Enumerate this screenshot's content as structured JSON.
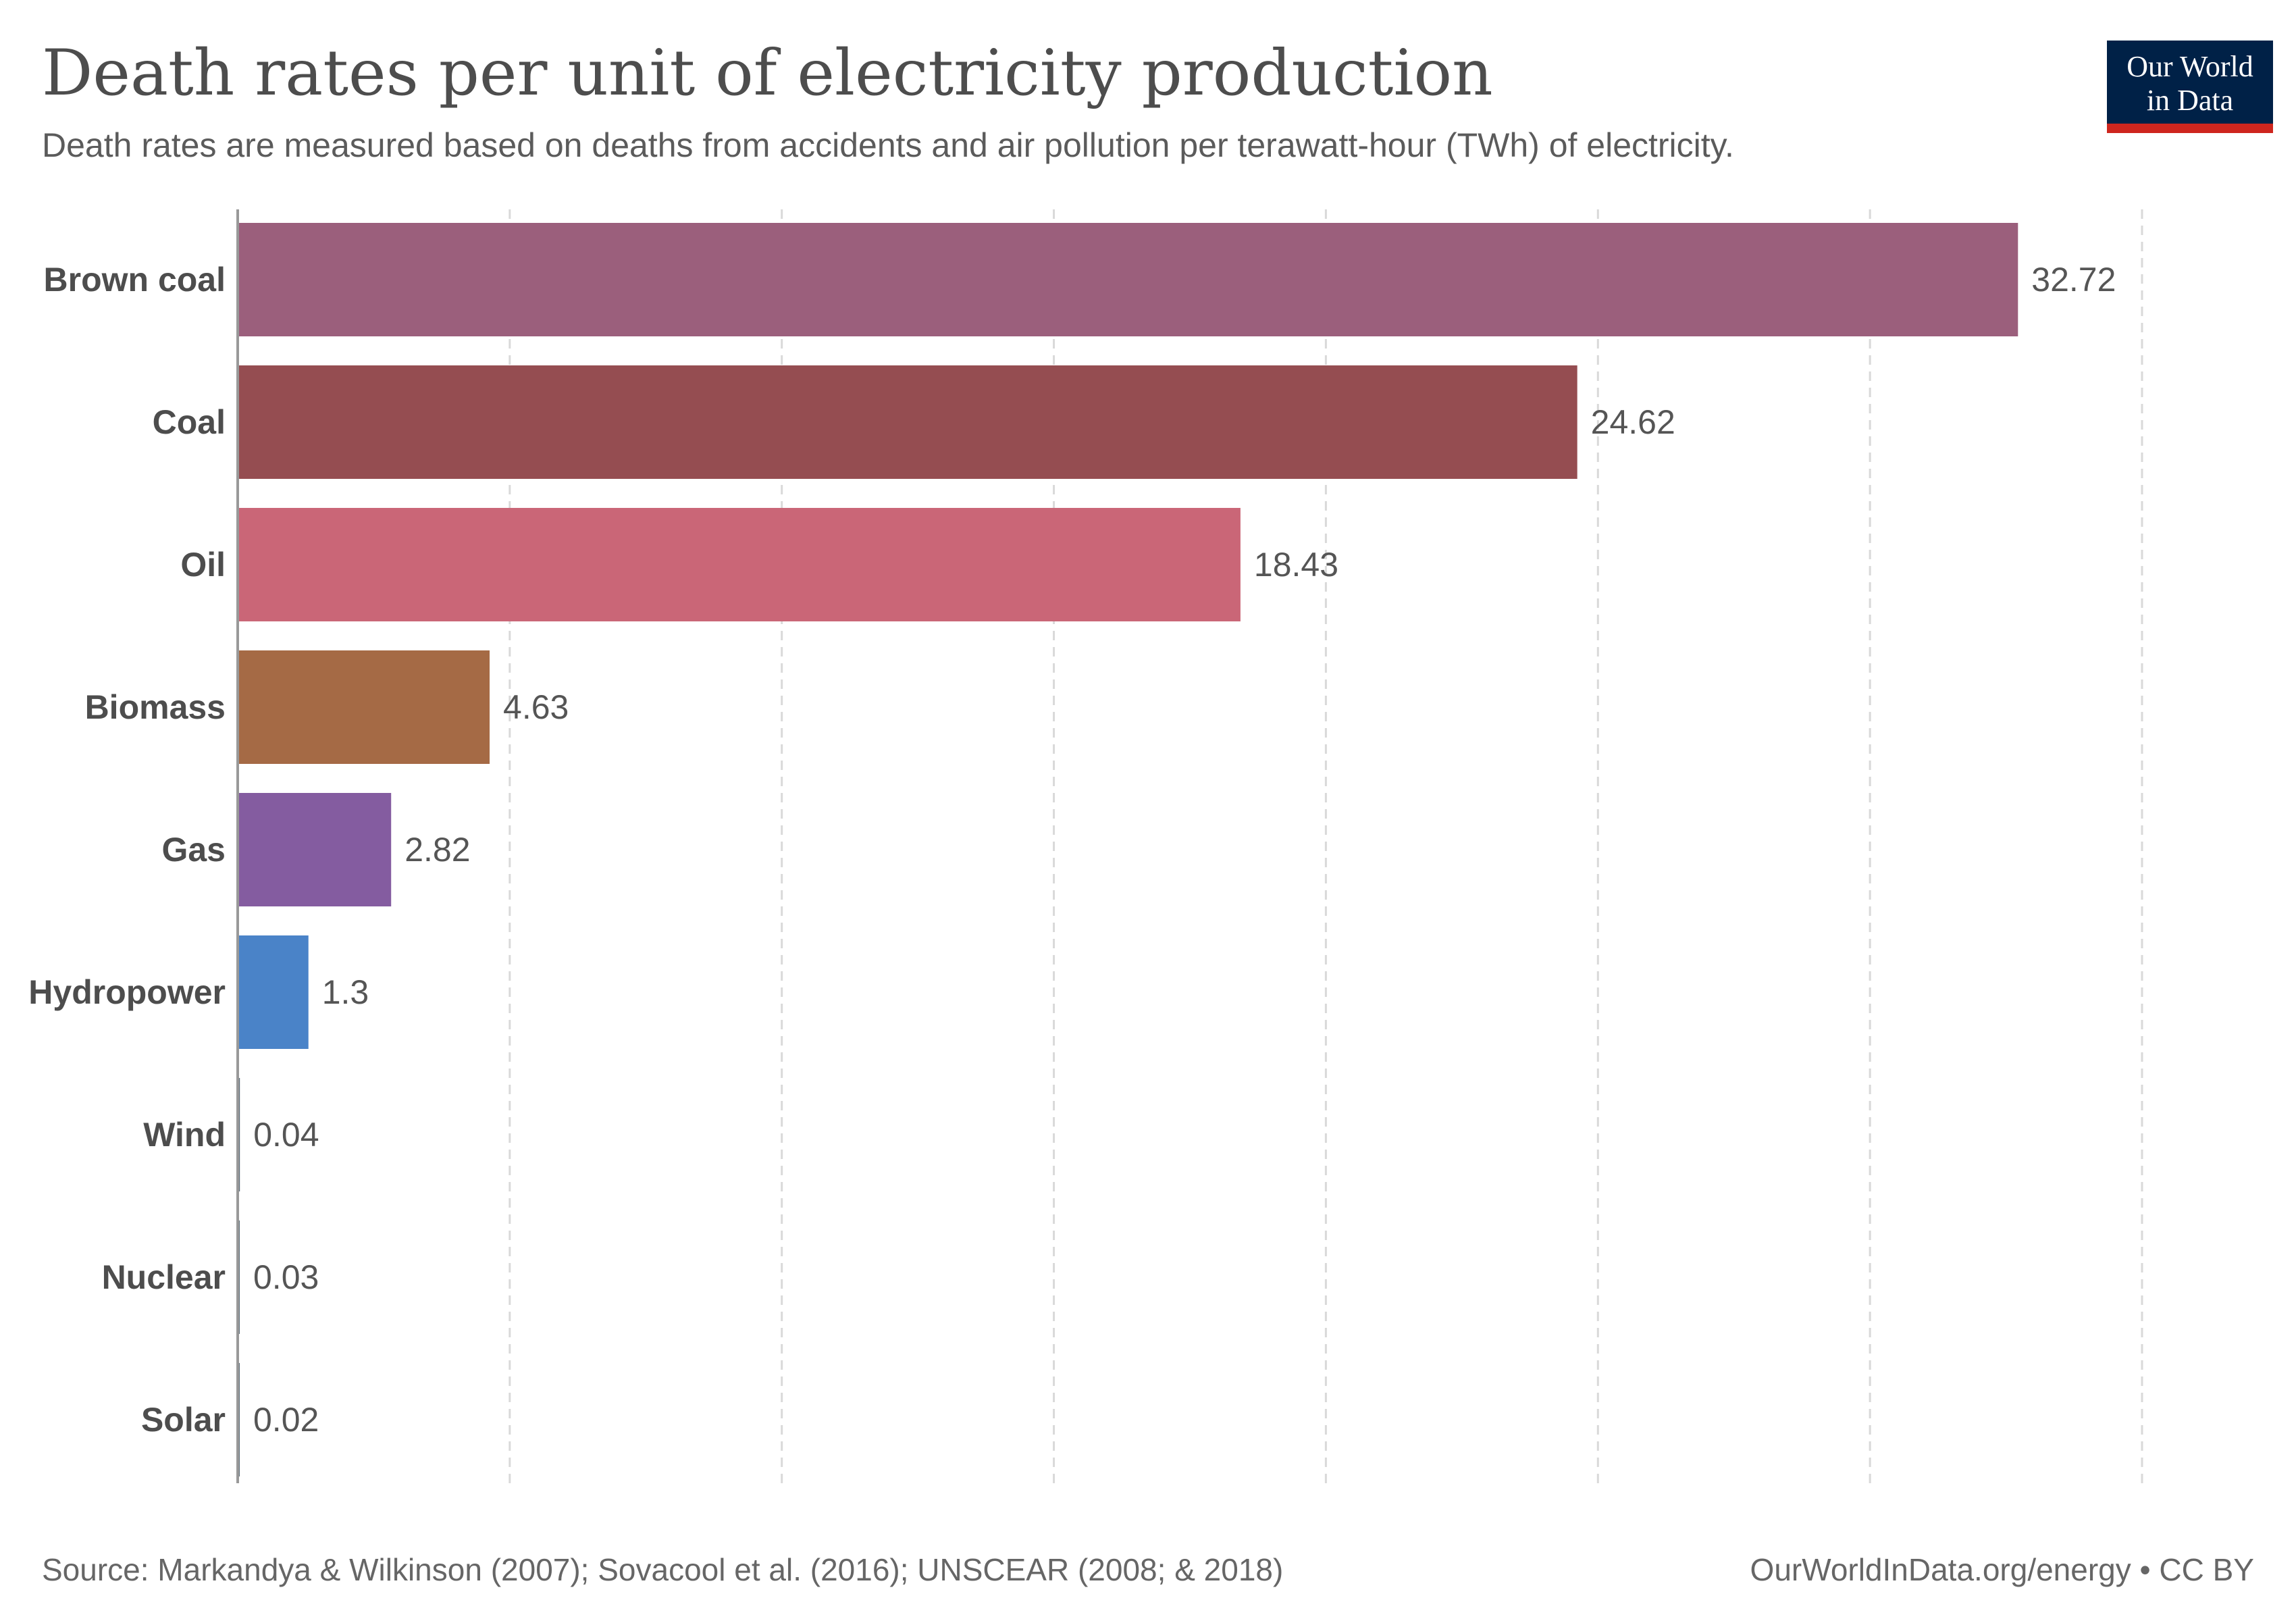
{
  "chart_data": {
    "type": "bar",
    "orientation": "horizontal",
    "title": "Death rates per unit of electricity production",
    "subtitle": "Death rates are measured based on deaths from accidents and air pollution per terawatt-hour (TWh) of electricity.",
    "categories": [
      "Brown coal",
      "Coal",
      "Oil",
      "Biomass",
      "Gas",
      "Hydropower",
      "Wind",
      "Nuclear",
      "Solar"
    ],
    "values": [
      32.72,
      24.62,
      18.43,
      4.63,
      2.82,
      1.3,
      0.04,
      0.03,
      0.02
    ],
    "value_labels": [
      "32.72",
      "24.62",
      "18.43",
      "4.63",
      "2.82",
      "1.3",
      "0.04",
      "0.03",
      "0.02"
    ],
    "colors": [
      "#9b5f7c",
      "#954d51",
      "#ca6677",
      "#a56a45",
      "#845ca0",
      "#4a83c8",
      "#5f6f7a",
      "#5f6f7a",
      "#5f6f7a"
    ],
    "xlim": [
      0,
      35
    ],
    "grid_interval": 5,
    "grid": true,
    "xlabel": "",
    "ylabel": ""
  },
  "logo": {
    "line1": "Our World",
    "line2": "in Data",
    "bg": "#002147",
    "accent": "#ce261e"
  },
  "footer": {
    "source": "Source: Markandya & Wilkinson (2007); Sovacool et al. (2016); UNSCEAR (2008; & 2018)",
    "credit": "OurWorldInData.org/energy • CC BY"
  }
}
